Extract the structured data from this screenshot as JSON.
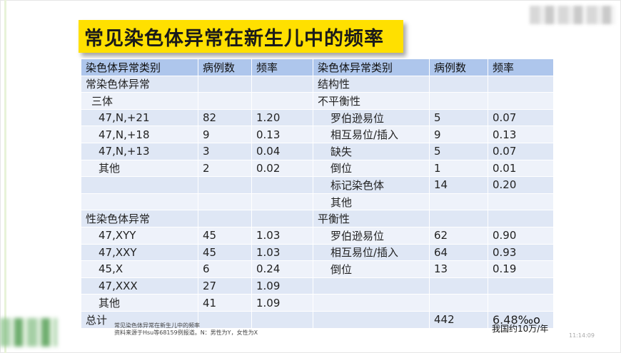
{
  "title": "常见染色体异常在新生儿中的频率",
  "headers": [
    "染色体异常类别",
    "病例数",
    "频率",
    "染色体异常类别",
    "病例数",
    "频率"
  ],
  "rows": [
    {
      "l": [
        "常染色体异常",
        "",
        ""
      ],
      "r": [
        "结构性",
        "",
        ""
      ]
    },
    {
      "l": [
        "三体",
        "",
        ""
      ],
      "r": [
        "不平衡性",
        "",
        ""
      ]
    },
    {
      "l": [
        "47,N,+21",
        "82",
        "1.20"
      ],
      "r": [
        "罗伯逊易位",
        "5",
        "0.07"
      ]
    },
    {
      "l": [
        "47,N,+18",
        "9",
        "0.13"
      ],
      "r": [
        "相互易位/插入",
        "9",
        "0.13"
      ]
    },
    {
      "l": [
        "47,N,+13",
        "3",
        "0.04"
      ],
      "r": [
        "缺失",
        "5",
        "0.07"
      ]
    },
    {
      "l": [
        "其他",
        "2",
        "0.02"
      ],
      "r": [
        "倒位",
        "1",
        "0.01"
      ]
    },
    {
      "l": [
        "",
        "",
        ""
      ],
      "r": [
        "标记染色体",
        "14",
        "0.20"
      ]
    },
    {
      "l": [
        "",
        "",
        ""
      ],
      "r": [
        "其他",
        "",
        ""
      ]
    },
    {
      "l": [
        "性染色体异常",
        "",
        ""
      ],
      "r": [
        "平衡性",
        "",
        ""
      ]
    },
    {
      "l": [
        "47,XYY",
        "45",
        "1.03"
      ],
      "r": [
        "罗伯逊易位",
        "62",
        "0.90"
      ]
    },
    {
      "l": [
        "47,XXY",
        "45",
        "1.03"
      ],
      "r": [
        "相互易位/插入",
        "64",
        "0.93"
      ]
    },
    {
      "l": [
        "45,X",
        "6",
        "0.24"
      ],
      "r": [
        "倒位",
        "13",
        "0.19"
      ]
    },
    {
      "l": [
        "47,XXX",
        "27",
        "1.09"
      ],
      "r": [
        "",
        "",
        ""
      ]
    },
    {
      "l": [
        "其他",
        "41",
        "1.09"
      ],
      "r": [
        "",
        "",
        ""
      ]
    },
    {
      "l": [
        "总计",
        "",
        ""
      ],
      "r": [
        "",
        "442",
        "6.48"
      ]
    }
  ],
  "total_unit": "‰o",
  "source_line1": "常见染色体异常在新生儿中的频率",
  "source_line2": "资料来源于Hsu等68159例报道。N：男性为Y，女性为X",
  "note": "我国约10万/年",
  "time": "11:14:09",
  "colors": {
    "title_bg": "#ffe000",
    "header_bg": "#aec6ec",
    "row_odd": "#dfe7f5",
    "row_even": "#eef2fa",
    "red": "#e00000"
  }
}
